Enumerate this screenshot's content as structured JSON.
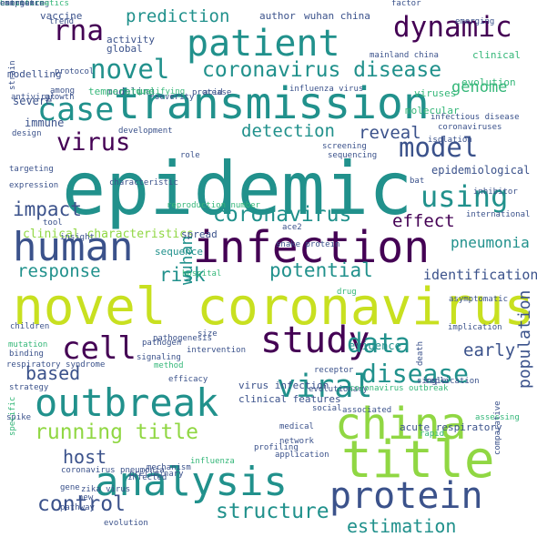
{
  "palette": {
    "purple": "#440154",
    "indigo": "#3b528b",
    "blue": "#31688e",
    "teal": "#21918c",
    "green": "#35b779",
    "lime": "#90d743",
    "yellow": "#c8e020"
  },
  "words": [
    {
      "text": "epidemic",
      "color": "teal"
    },
    {
      "text": "novel coronavirus",
      "color": "yellow"
    },
    {
      "text": "infection",
      "color": "purple"
    },
    {
      "text": "transmission",
      "color": "teal"
    },
    {
      "text": "patient",
      "color": "teal"
    },
    {
      "text": "human",
      "color": "indigo"
    },
    {
      "text": "china",
      "color": "lime"
    },
    {
      "text": "title",
      "color": "lime"
    },
    {
      "text": "analysis",
      "color": "teal"
    },
    {
      "text": "protein",
      "color": "indigo"
    },
    {
      "text": "outbreak",
      "color": "teal"
    },
    {
      "text": "study",
      "color": "purple"
    },
    {
      "text": "case",
      "color": "teal"
    },
    {
      "text": "cell",
      "color": "purple"
    },
    {
      "text": "viral",
      "color": "teal"
    },
    {
      "text": "rna",
      "color": "purple"
    },
    {
      "text": "model",
      "color": "indigo"
    },
    {
      "text": "using",
      "color": "teal"
    },
    {
      "text": "novel",
      "color": "teal"
    },
    {
      "text": "dynamic",
      "color": "purple"
    },
    {
      "text": "coronavirus disease",
      "color": "teal"
    },
    {
      "text": "coronavirus",
      "color": "teal"
    },
    {
      "text": "virus",
      "color": "purple"
    },
    {
      "text": "data",
      "color": "teal"
    },
    {
      "text": "disease",
      "color": "teal"
    },
    {
      "text": "running title",
      "color": "lime"
    },
    {
      "text": "control",
      "color": "indigo"
    },
    {
      "text": "structure",
      "color": "teal"
    },
    {
      "text": "prediction",
      "color": "teal"
    },
    {
      "text": "detection",
      "color": "teal"
    },
    {
      "text": "impact",
      "color": "indigo"
    },
    {
      "text": "potential",
      "color": "teal"
    },
    {
      "text": "response",
      "color": "teal"
    },
    {
      "text": "risk",
      "color": "teal"
    },
    {
      "text": "based",
      "color": "indigo"
    },
    {
      "text": "host",
      "color": "indigo"
    },
    {
      "text": "wuhan",
      "color": "teal"
    },
    {
      "text": "estimation",
      "color": "teal"
    },
    {
      "text": "population",
      "color": "indigo"
    },
    {
      "text": "genome",
      "color": "green"
    },
    {
      "text": "reveal",
      "color": "indigo"
    },
    {
      "text": "effect",
      "color": "purple"
    },
    {
      "text": "early",
      "color": "indigo"
    },
    {
      "text": "pneumonia",
      "color": "teal"
    },
    {
      "text": "identification",
      "color": "indigo"
    },
    {
      "text": "clinical characteristics",
      "color": "lime"
    },
    {
      "text": "epidemiological",
      "color": "indigo"
    },
    {
      "text": "sequence",
      "color": "teal"
    },
    {
      "text": "spread",
      "color": "indigo"
    },
    {
      "text": "evidence",
      "color": "teal"
    },
    {
      "text": "virus infection",
      "color": "indigo"
    },
    {
      "text": "clinical features",
      "color": "indigo"
    },
    {
      "text": "acute respiratory",
      "color": "indigo"
    },
    {
      "text": "wuhan china",
      "color": "indigo"
    },
    {
      "text": "author",
      "color": "indigo"
    },
    {
      "text": "vaccine",
      "color": "indigo"
    },
    {
      "text": "modelling",
      "color": "indigo"
    },
    {
      "text": "modeling",
      "color": "indigo"
    },
    {
      "text": "temperature",
      "color": "green"
    },
    {
      "text": "activity",
      "color": "indigo"
    },
    {
      "text": "global",
      "color": "indigo"
    },
    {
      "text": "mainland china",
      "color": "indigo"
    },
    {
      "text": "influenza virus",
      "color": "indigo"
    },
    {
      "text": "viruses",
      "color": "green"
    },
    {
      "text": "evolution",
      "color": "green"
    },
    {
      "text": "molecular",
      "color": "green"
    },
    {
      "text": "infectious disease",
      "color": "indigo"
    },
    {
      "text": "coronaviruses",
      "color": "indigo"
    },
    {
      "text": "clinical",
      "color": "green"
    },
    {
      "text": "severe",
      "color": "indigo"
    },
    {
      "text": "immune",
      "color": "indigo"
    },
    {
      "text": "design",
      "color": "indigo"
    },
    {
      "text": "expression",
      "color": "indigo"
    },
    {
      "text": "inhibitor",
      "color": "indigo"
    },
    {
      "text": "international",
      "color": "indigo"
    },
    {
      "text": "bat",
      "color": "indigo"
    },
    {
      "text": "role",
      "color": "indigo"
    },
    {
      "text": "screening",
      "color": "indigo"
    },
    {
      "text": "sequencing",
      "color": "indigo"
    },
    {
      "text": "insight",
      "color": "indigo"
    },
    {
      "text": "tool",
      "color": "indigo"
    },
    {
      "text": "hospital",
      "color": "green"
    },
    {
      "text": "children",
      "color": "indigo"
    },
    {
      "text": "pathogenesis",
      "color": "indigo"
    },
    {
      "text": "intervention",
      "color": "indigo"
    },
    {
      "text": "signaling",
      "color": "indigo"
    },
    {
      "text": "pathogen",
      "color": "indigo"
    },
    {
      "text": "respiratory syndrome",
      "color": "indigo"
    },
    {
      "text": "method",
      "color": "green"
    },
    {
      "text": "spike",
      "color": "indigo"
    },
    {
      "text": "social",
      "color": "indigo"
    },
    {
      "text": "evolutionary",
      "color": "indigo"
    },
    {
      "text": "receptor",
      "color": "indigo"
    },
    {
      "text": "coronavirus outbreak",
      "color": "green"
    },
    {
      "text": "associated",
      "color": "indigo"
    },
    {
      "text": "replication",
      "color": "indigo"
    },
    {
      "text": "medical",
      "color": "indigo"
    },
    {
      "text": "network",
      "color": "indigo"
    },
    {
      "text": "profiling",
      "color": "indigo"
    },
    {
      "text": "application",
      "color": "indigo"
    },
    {
      "text": "influenza",
      "color": "green"
    },
    {
      "text": "preliminary",
      "color": "indigo"
    },
    {
      "text": "infected",
      "color": "indigo"
    },
    {
      "text": "zika virus",
      "color": "indigo"
    },
    {
      "text": "gene",
      "color": "indigo"
    },
    {
      "text": "new",
      "color": "indigo"
    },
    {
      "text": "pathway",
      "color": "indigo"
    },
    {
      "text": "evolution",
      "color": "indigo"
    },
    {
      "text": "coronavirus pneumonia",
      "color": "indigo"
    },
    {
      "text": "comparative",
      "color": "indigo"
    },
    {
      "text": "rapid",
      "color": "green"
    },
    {
      "text": "strain",
      "color": "indigo"
    },
    {
      "text": "development",
      "color": "indigo"
    },
    {
      "text": "targeting",
      "color": "indigo"
    },
    {
      "text": "strategy",
      "color": "indigo"
    },
    {
      "text": "size",
      "color": "indigo"
    },
    {
      "text": "asymptomatic",
      "color": "indigo"
    },
    {
      "text": "ace2",
      "color": "indigo"
    },
    {
      "text": "drug",
      "color": "green"
    },
    {
      "text": "snake protein",
      "color": "indigo"
    },
    {
      "text": "isolation",
      "color": "indigo"
    },
    {
      "text": "emerging",
      "color": "indigo"
    },
    {
      "text": "factor",
      "color": "indigo"
    },
    {
      "text": "among",
      "color": "indigo"
    },
    {
      "text": "protocol",
      "color": "indigo"
    },
    {
      "text": "antiviral",
      "color": "indigo"
    },
    {
      "text": "growth",
      "color": "indigo"
    },
    {
      "text": "qualifying",
      "color": "green"
    },
    {
      "text": "protease",
      "color": "indigo"
    },
    {
      "text": "acid",
      "color": "indigo"
    },
    {
      "text": "implication",
      "color": "indigo"
    },
    {
      "text": "death",
      "color": "indigo"
    },
    {
      "text": "single",
      "color": "indigo"
    },
    {
      "text": "binding",
      "color": "indigo"
    },
    {
      "text": "mutation",
      "color": "green"
    },
    {
      "text": "efficacy",
      "color": "indigo"
    },
    {
      "text": "assessing",
      "color": "green"
    },
    {
      "text": "severity",
      "color": "indigo"
    },
    {
      "text": "trend",
      "color": "indigo"
    },
    {
      "text": "specific",
      "color": "green"
    },
    {
      "text": "mechanism",
      "color": "indigo"
    },
    {
      "text": "characteristic",
      "color": "indigo"
    },
    {
      "text": "reproduction number",
      "color": "green"
    },
    {
      "text": "estimating",
      "color": "indigo"
    },
    {
      "text": "complex",
      "color": "indigo"
    },
    {
      "text": "bioinformatics",
      "color": "green"
    },
    {
      "text": "emergence",
      "color": "indigo"
    }
  ]
}
